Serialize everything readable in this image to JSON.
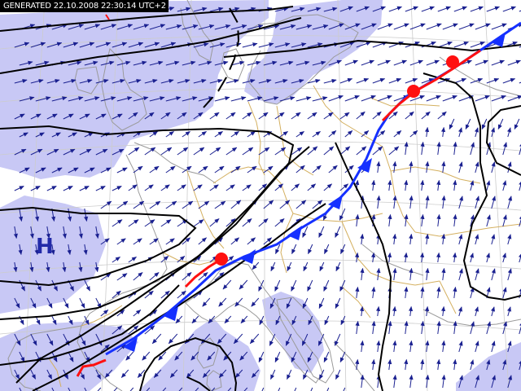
{
  "header": {
    "generated_text": "GENERATED 22.10.2008 22:30:14 UTC+2"
  },
  "map": {
    "region": "Europe",
    "content": "surface wind vectors, isobars, fronts, precipitation shading",
    "pressure_centers": [
      {
        "label": "H",
        "kind": "high"
      }
    ],
    "fronts": [
      {
        "type": "cold",
        "color": "#1530ff"
      },
      {
        "type": "warm",
        "color": "#ff1010"
      }
    ],
    "colors": {
      "background": "#ffffff",
      "precipitation_fill": "#c8c8f5",
      "coastline": "#9a9a9a",
      "borders": "#d4b060",
      "graticule": "#cccccc",
      "wind_vectors": "#1a2090",
      "isobars": "#000000",
      "cold_front": "#1530ff",
      "warm_front": "#ff1010",
      "high_label": "#222aa8",
      "timestamp_bg": "#000000",
      "timestamp_text": "#ffffff"
    }
  }
}
